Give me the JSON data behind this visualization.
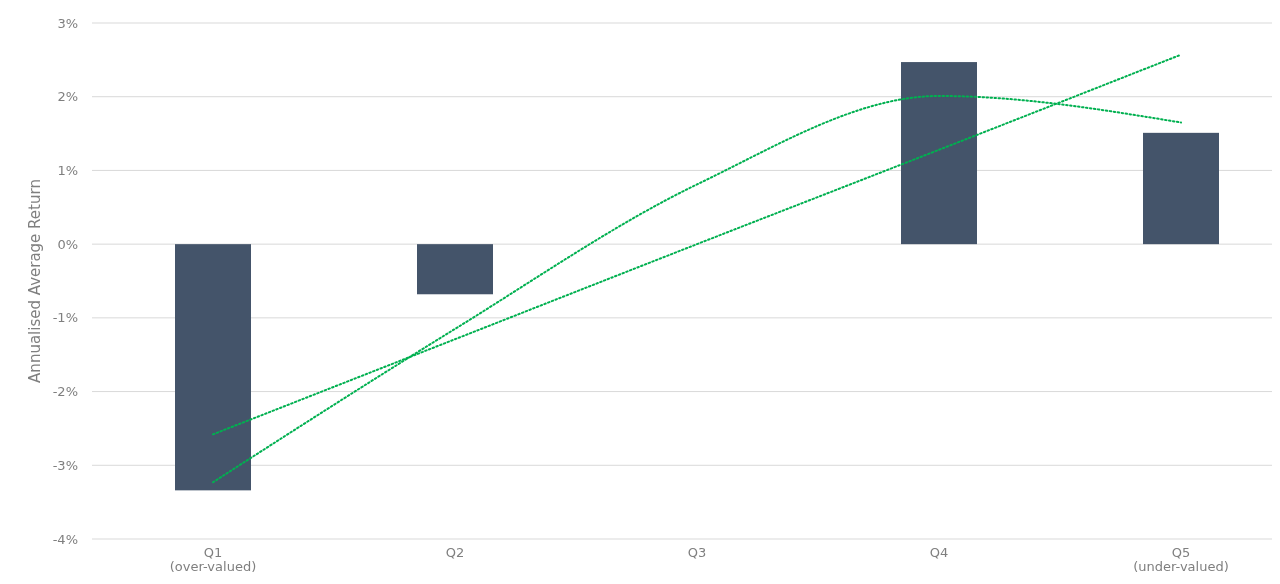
{
  "chart_data": {
    "type": "bar",
    "ylabel": "Annualised Average Return",
    "categories": [
      "Q1\n(over-valued)",
      "Q2",
      "Q3",
      "Q4",
      "Q5\n(under-valued)"
    ],
    "series": [
      {
        "color": "#44546a",
        "values": [
          -3.34,
          -0.68,
          0,
          2.47,
          1.51
        ]
      },
      {
        "type": "line",
        "color": "#00b050",
        "line_style": "dotted",
        "values": [
          -2.58,
          -1.29,
          0,
          1.28,
          2.57
        ]
      },
      {
        "type": "line",
        "color": "#00b050",
        "line_style": "dotted",
        "values": [
          -3.23,
          -1.15,
          0.81,
          2.01,
          1.65
        ]
      }
    ],
    "ylim": [
      -4,
      3
    ],
    "yticks": [
      {
        "value": -4,
        "label": "-4%"
      },
      {
        "value": -3,
        "label": "-3%"
      },
      {
        "value": -2,
        "label": "-2%"
      },
      {
        "value": -1,
        "label": "-1%"
      },
      {
        "value": 0,
        "label": "0%"
      },
      {
        "value": 1,
        "label": "1%"
      },
      {
        "value": 2,
        "label": "2%"
      },
      {
        "value": 3,
        "label": "3%"
      }
    ],
    "grid": "y"
  }
}
